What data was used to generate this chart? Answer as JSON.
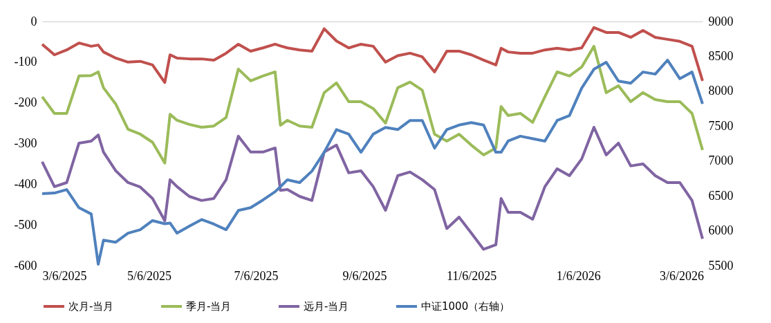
{
  "chart_data": {
    "type": "line",
    "x": [
      "2025-03-06",
      "2025-03-13",
      "2025-03-20",
      "2025-03-27",
      "2025-04-03",
      "2025-04-07",
      "2025-04-10",
      "2025-04-17",
      "2025-04-24",
      "2025-05-01",
      "2025-05-08",
      "2025-05-15",
      "2025-05-18",
      "2025-05-22",
      "2025-05-29",
      "2025-06-05",
      "2025-06-12",
      "2025-06-19",
      "2025-06-26",
      "2025-07-03",
      "2025-07-10",
      "2025-07-17",
      "2025-07-20",
      "2025-07-24",
      "2025-07-31",
      "2025-08-07",
      "2025-08-14",
      "2025-08-21",
      "2025-08-28",
      "2025-09-04",
      "2025-09-11",
      "2025-09-18",
      "2025-09-25",
      "2025-10-02",
      "2025-10-09",
      "2025-10-16",
      "2025-10-23",
      "2025-10-30",
      "2025-11-06",
      "2025-11-13",
      "2025-11-20",
      "2025-11-23",
      "2025-11-27",
      "2025-12-04",
      "2025-12-11",
      "2025-12-18",
      "2025-12-25",
      "2026-01-01",
      "2026-01-08",
      "2026-01-15",
      "2026-01-22",
      "2026-01-29",
      "2026-02-05",
      "2026-02-12",
      "2026-02-19",
      "2026-02-26",
      "2026-03-05",
      "2026-03-12",
      "2026-03-18"
    ],
    "series": [
      {
        "name": "次月-当月",
        "color": "#c0504d",
        "values": [
          -56,
          -82,
          -70,
          -53,
          -61,
          -58,
          -75,
          -90,
          -100,
          -98,
          -107,
          -150,
          -82,
          -90,
          -92,
          -92,
          -95,
          -78,
          -56,
          -73,
          -65,
          -56,
          -60,
          -65,
          -70,
          -73,
          -18,
          -48,
          -65,
          -56,
          -61,
          -100,
          -84,
          -78,
          -87,
          -124,
          -73,
          -73,
          -82,
          -95,
          -107,
          -66,
          -75,
          -78,
          -78,
          -70,
          -66,
          -70,
          -65,
          -15,
          -27,
          -27,
          -39,
          -22,
          -39,
          -44,
          -49,
          -61,
          -146
        ]
      },
      {
        "name": "季月-当月",
        "color": "#9bbb59",
        "values": [
          -185,
          -226,
          -226,
          -134,
          -133,
          -124,
          -163,
          -203,
          -265,
          -277,
          -297,
          -348,
          -228,
          -243,
          -253,
          -260,
          -257,
          -236,
          -117,
          -146,
          -134,
          -124,
          -255,
          -243,
          -257,
          -260,
          -175,
          -151,
          -197,
          -197,
          -214,
          -250,
          -163,
          -149,
          -169,
          -277,
          -294,
          -277,
          -304,
          -328,
          -311,
          -209,
          -231,
          -226,
          -248,
          -185,
          -124,
          -134,
          -112,
          -61,
          -175,
          -158,
          -197,
          -175,
          -192,
          -197,
          -197,
          -226,
          -316
        ]
      },
      {
        "name": "远月-当月",
        "color": "#8064a2",
        "values": [
          -345,
          -406,
          -396,
          -299,
          -294,
          -279,
          -321,
          -367,
          -396,
          -407,
          -435,
          -490,
          -389,
          -406,
          -430,
          -440,
          -435,
          -389,
          -282,
          -321,
          -321,
          -311,
          -415,
          -413,
          -430,
          -440,
          -321,
          -304,
          -372,
          -367,
          -406,
          -464,
          -379,
          -370,
          -389,
          -413,
          -509,
          -481,
          -520,
          -560,
          -549,
          -435,
          -469,
          -469,
          -486,
          -406,
          -362,
          -379,
          -338,
          -260,
          -328,
          -299,
          -355,
          -350,
          -379,
          -396,
          -396,
          -440,
          -534
        ]
      },
      {
        "name": "中证1000（右轴）",
        "color": "#4f81bd",
        "axis": "y2",
        "values": [
          6530,
          6540,
          6590,
          6330,
          6240,
          5520,
          5865,
          5835,
          5965,
          6015,
          6145,
          6100,
          6110,
          5965,
          6065,
          6160,
          6095,
          6015,
          6290,
          6330,
          6440,
          6560,
          6630,
          6730,
          6690,
          6855,
          7125,
          7450,
          7385,
          7125,
          7385,
          7480,
          7450,
          7580,
          7580,
          7185,
          7450,
          7515,
          7550,
          7515,
          7125,
          7125,
          7285,
          7355,
          7320,
          7285,
          7580,
          7650,
          8045,
          8315,
          8415,
          8145,
          8115,
          8275,
          8245,
          8445,
          8180,
          8275,
          7820
        ]
      }
    ],
    "xlim": [
      "2025-03-06",
      "2026-03-18"
    ],
    "xticks": [
      {
        "value": "2025-03-06",
        "label": "3/6/2025"
      },
      {
        "value": "2025-05-06",
        "label": "5/6/2025"
      },
      {
        "value": "2025-07-06",
        "label": "7/6/2025"
      },
      {
        "value": "2025-09-06",
        "label": "9/6/2025"
      },
      {
        "value": "2025-11-06",
        "label": "11/6/2025"
      },
      {
        "value": "2026-01-06",
        "label": "1/6/2026"
      },
      {
        "value": "2026-03-06",
        "label": "3/6/2026"
      }
    ],
    "ylim": [
      -600,
      0
    ],
    "yticks": [
      -600,
      -500,
      -400,
      -300,
      -200,
      -100,
      0
    ],
    "y2lim": [
      5500,
      9000
    ],
    "y2ticks": [
      5500,
      6000,
      6500,
      7000,
      7500,
      8000,
      8500,
      9000
    ],
    "legend": "bottom"
  }
}
